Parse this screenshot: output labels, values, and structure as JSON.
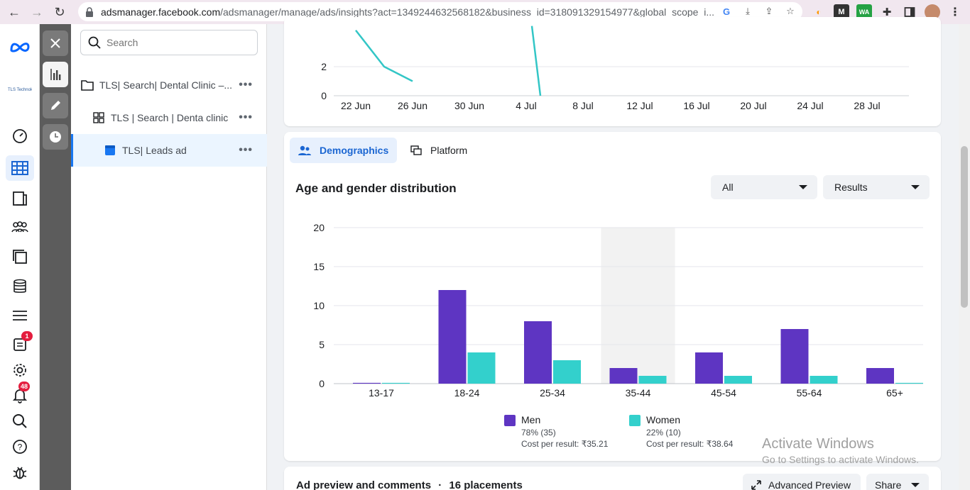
{
  "browser": {
    "url_host": "adsmanager.facebook.com",
    "url_path": "/adsmanager/manage/ads/insights?act=1349244632568182&business_id=318091329154977&global_scope_i..."
  },
  "rail": {
    "notifications_count": "1",
    "alerts_count": "48"
  },
  "tree": {
    "search_placeholder": "Search",
    "items": [
      {
        "label": "TLS| Search| Dental Clinic –..."
      },
      {
        "label": "TLS | Search | Denta clinic"
      },
      {
        "label": "TLS| Leads ad"
      }
    ]
  },
  "tabs": {
    "demographics": "Demographics",
    "platform": "Platform"
  },
  "demographics": {
    "title": "Age and gender distribution",
    "filter_value": "All",
    "metric_value": "Results"
  },
  "legend": {
    "men_label": "Men",
    "men_share": "78% (35)",
    "men_cost": "Cost per result: ₹35.21",
    "women_label": "Women",
    "women_share": "22% (10)",
    "women_cost": "Cost per result: ₹38.64"
  },
  "bottom": {
    "title": "Ad preview and comments",
    "placements": "16 placements",
    "advanced_preview": "Advanced Preview",
    "share": "Share"
  },
  "watermark": {
    "line1": "Activate Windows",
    "line2": "Go to Settings to activate Windows."
  },
  "colors": {
    "men": "#5e35c2",
    "women": "#33d0cc",
    "accent": "#1b66d2"
  },
  "chart_data": [
    {
      "type": "line",
      "x_ticks": [
        "22 Jun",
        "26 Jun",
        "30 Jun",
        "4 Jul",
        "8 Jul",
        "12 Jul",
        "16 Jul",
        "20 Jul",
        "24 Jul",
        "28 Jul"
      ],
      "y_ticks": [
        0,
        2
      ],
      "series": [
        {
          "points": [
            [
              0,
              4.5
            ],
            [
              0.5,
              2
            ],
            [
              1,
              1
            ]
          ],
          "color": "#33c6c6"
        },
        {
          "points": [
            [
              3.1,
              4.8
            ],
            [
              3.25,
              0
            ]
          ],
          "color": "#33c6c6"
        }
      ]
    },
    {
      "type": "bar",
      "categories": [
        "13-17",
        "18-24",
        "25-34",
        "35-44",
        "45-54",
        "55-64",
        "65+"
      ],
      "series": [
        {
          "name": "Men",
          "values": [
            0.1,
            12,
            8,
            2,
            4,
            7,
            2
          ]
        },
        {
          "name": "Women",
          "values": [
            0.1,
            4,
            3,
            1,
            1,
            1,
            0.1
          ]
        }
      ],
      "ylim": [
        0,
        20
      ],
      "y_ticks": [
        0,
        5,
        10,
        15,
        20
      ],
      "highlight_category": "35-44"
    }
  ]
}
